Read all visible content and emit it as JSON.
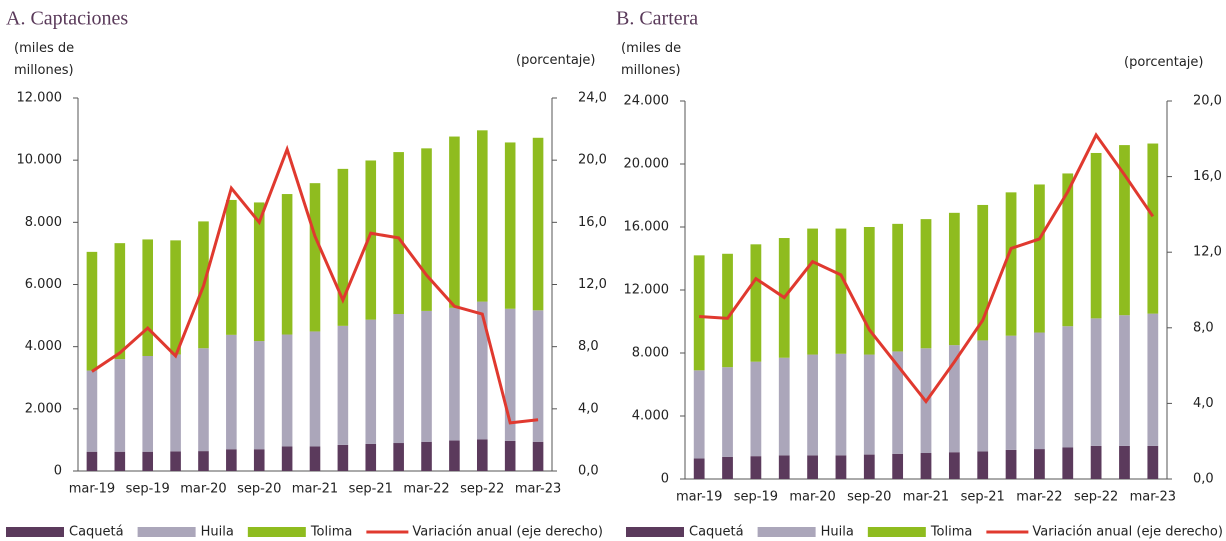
{
  "chart_data": [
    {
      "type": "bar",
      "stacked": true,
      "title": "A. Captaciones",
      "ylabel": "(miles de millones)",
      "y2label": "(porcentaje)",
      "categories": [
        "mar-19",
        null,
        "sep-19",
        null,
        "mar-20",
        null,
        "sep-20",
        null,
        "mar-21",
        null,
        "sep-21",
        null,
        "mar-22",
        null,
        "sep-22",
        null,
        "mar-23"
      ],
      "series": [
        {
          "name": "Caquetá",
          "color": "#5b3a5c",
          "values": [
            620,
            620,
            620,
            630,
            640,
            700,
            700,
            790,
            790,
            840,
            870,
            900,
            940,
            980,
            1020,
            970,
            940
          ]
        },
        {
          "name": "Huila",
          "color": "#aba6ba",
          "values": [
            2610,
            2980,
            3080,
            3120,
            3310,
            3680,
            3480,
            3600,
            3700,
            3830,
            4000,
            4150,
            4210,
            4270,
            4430,
            4250,
            4230
          ]
        },
        {
          "name": "Tolima",
          "color": "#8fbc1f",
          "values": [
            3820,
            3730,
            3750,
            3670,
            4080,
            4340,
            4460,
            4520,
            4770,
            5050,
            5120,
            5210,
            5230,
            5510,
            5510,
            5350,
            5550
          ]
        },
        {
          "name": "Variación anual (eje derecho)",
          "color": "#e0392f",
          "axis": "y2",
          "values": [
            6.4,
            7.6,
            9.2,
            7.4,
            11.9,
            18.2,
            16.0,
            20.7,
            15.1,
            11.0,
            15.3,
            15.0,
            12.6,
            10.6,
            10.1,
            3.1,
            3.3
          ]
        }
      ],
      "ylim": [
        0,
        12000
      ],
      "yticks": [
        0,
        {
          "value": 2000,
          "label": "2.000"
        },
        {
          "value": 4000,
          "label": "4.000"
        },
        {
          "value": 6000,
          "label": "6.000"
        },
        {
          "value": 8000,
          "label": "8.000"
        },
        {
          "value": 10000,
          "label": "10.000"
        },
        {
          "value": 12000,
          "label": "12.000"
        }
      ],
      "y2lim": [
        0,
        24
      ],
      "y2ticks": [
        {
          "value": 0,
          "label": "0,0"
        },
        {
          "value": 4,
          "label": "4,0"
        },
        {
          "value": 8,
          "label": "8,0"
        },
        {
          "value": 12,
          "label": "12,0"
        },
        {
          "value": 16,
          "label": "16,0"
        },
        {
          "value": 20,
          "label": "20,0"
        },
        {
          "value": 24,
          "label": "24,0"
        }
      ]
    },
    {
      "type": "bar",
      "stacked": true,
      "title": "B. Cartera",
      "ylabel": "(miles de millones)",
      "y2label": "(porcentaje)",
      "categories": [
        "mar-19",
        null,
        "sep-19",
        null,
        "mar-20",
        null,
        "sep-20",
        null,
        "mar-21",
        null,
        "sep-21",
        null,
        "mar-22",
        null,
        "sep-22",
        null,
        "mar-23"
      ],
      "series": [
        {
          "name": "Caquetá",
          "color": "#5b3a5c",
          "values": [
            1300,
            1400,
            1450,
            1500,
            1500,
            1500,
            1550,
            1600,
            1650,
            1700,
            1750,
            1850,
            1900,
            2000,
            2100,
            2100,
            2100
          ]
        },
        {
          "name": "Huila",
          "color": "#aba6ba",
          "values": [
            5600,
            5700,
            6000,
            6200,
            6400,
            6450,
            6350,
            6500,
            6650,
            6800,
            7050,
            7250,
            7400,
            7700,
            8100,
            8300,
            8400
          ]
        },
        {
          "name": "Tolima",
          "color": "#8fbc1f",
          "values": [
            7300,
            7200,
            7450,
            7600,
            8000,
            7950,
            8100,
            8100,
            8200,
            8400,
            8600,
            9100,
            9400,
            9700,
            10500,
            10800,
            10800
          ]
        },
        {
          "name": "Variación anual (eje derecho)",
          "color": "#e0392f",
          "axis": "y2",
          "values": [
            8.6,
            8.5,
            10.6,
            9.6,
            11.5,
            10.8,
            7.9,
            6.0,
            4.1,
            6.2,
            8.4,
            12.2,
            12.7,
            15.2,
            18.2,
            16.1,
            13.9
          ]
        }
      ],
      "ylim": [
        0,
        24000
      ],
      "yticks": [
        0,
        {
          "value": 4000,
          "label": "4.000"
        },
        {
          "value": 8000,
          "label": "8.000"
        },
        {
          "value": 12000,
          "label": "12.000"
        },
        {
          "value": 16000,
          "label": "16.000"
        },
        {
          "value": 20000,
          "label": "20.000"
        },
        {
          "value": 24000,
          "label": "24.000"
        }
      ],
      "y2lim": [
        0,
        20
      ],
      "y2ticks": [
        {
          "value": 0,
          "label": "0,0"
        },
        {
          "value": 4,
          "label": "4,0"
        },
        {
          "value": 8,
          "label": "8,0"
        },
        {
          "value": 12,
          "label": "12,0"
        },
        {
          "value": 16,
          "label": "16,0"
        },
        {
          "value": 20,
          "label": "20,0"
        }
      ]
    }
  ]
}
